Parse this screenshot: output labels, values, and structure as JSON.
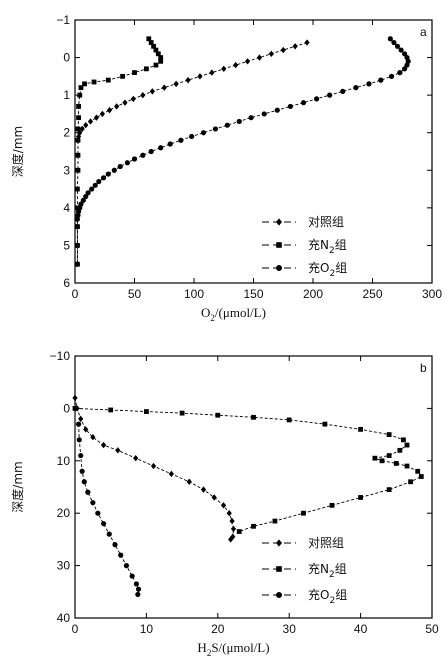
{
  "chart_data": [
    {
      "type": "line",
      "panel_label": "a",
      "xlabel_pre": "O",
      "xlabel_sub": "2",
      "xlabel_post": "/(μmol/L)",
      "ylabel": "深度/mm",
      "xlim": [
        0,
        300
      ],
      "ylim": [
        -1,
        6
      ],
      "y_inverted": true,
      "xticks": [
        0,
        50,
        100,
        150,
        200,
        250,
        300
      ],
      "yticks": [
        -1,
        0,
        1,
        2,
        3,
        4,
        5,
        6
      ],
      "legend_position": "bottom-right",
      "series": [
        {
          "name": "对照组",
          "marker": "diamond",
          "points": [
            [
              195,
              -0.4
            ],
            [
              185,
              -0.3
            ],
            [
              175,
              -0.2
            ],
            [
              165,
              -0.1
            ],
            [
              155,
              0.0
            ],
            [
              145,
              0.1
            ],
            [
              135,
              0.2
            ],
            [
              125,
              0.3
            ],
            [
              115,
              0.4
            ],
            [
              105,
              0.5
            ],
            [
              95,
              0.6
            ],
            [
              85,
              0.7
            ],
            [
              75,
              0.8
            ],
            [
              65,
              0.9
            ],
            [
              57,
              1.0
            ],
            [
              49,
              1.1
            ],
            [
              42,
              1.2
            ],
            [
              35,
              1.3
            ],
            [
              29,
              1.4
            ],
            [
              23,
              1.5
            ],
            [
              18,
              1.6
            ],
            [
              13,
              1.7
            ],
            [
              9,
              1.8
            ],
            [
              6,
              1.9
            ],
            [
              4,
              2.0
            ],
            [
              3,
              2.1
            ],
            [
              2.5,
              2.2
            ]
          ]
        },
        {
          "name": "充N",
          "name_sub": "2",
          "name_post": "组",
          "marker": "square",
          "points": [
            [
              62,
              -0.5
            ],
            [
              64,
              -0.4
            ],
            [
              66,
              -0.3
            ],
            [
              68,
              -0.2
            ],
            [
              70,
              -0.1
            ],
            [
              72,
              0.0
            ],
            [
              72,
              0.1
            ],
            [
              68,
              0.2
            ],
            [
              60,
              0.3
            ],
            [
              50,
              0.4
            ],
            [
              40,
              0.5
            ],
            [
              28,
              0.6
            ],
            [
              16,
              0.65
            ],
            [
              8,
              0.7
            ],
            [
              5,
              0.8
            ],
            [
              4,
              1.0
            ],
            [
              3,
              1.3
            ],
            [
              3,
              1.6
            ],
            [
              2.5,
              1.9
            ],
            [
              2.5,
              2.2
            ],
            [
              2.5,
              2.6
            ],
            [
              2.5,
              3.0
            ],
            [
              2,
              3.5
            ],
            [
              2,
              4.0
            ],
            [
              2,
              4.5
            ],
            [
              2,
              5.0
            ],
            [
              2,
              5.5
            ]
          ]
        },
        {
          "name": "充O",
          "name_sub": "2",
          "name_post": "组",
          "marker": "circle",
          "points": [
            [
              265,
              -0.5
            ],
            [
              268,
              -0.4
            ],
            [
              271,
              -0.3
            ],
            [
              274,
              -0.2
            ],
            [
              277,
              -0.1
            ],
            [
              279,
              0.0
            ],
            [
              280,
              0.1
            ],
            [
              279,
              0.2
            ],
            [
              277,
              0.3
            ],
            [
              273,
              0.4
            ],
            [
              266,
              0.5
            ],
            [
              257,
              0.6
            ],
            [
              247,
              0.7
            ],
            [
              236,
              0.8
            ],
            [
              225,
              0.9
            ],
            [
              214,
              1.0
            ],
            [
              203,
              1.1
            ],
            [
              192,
              1.2
            ],
            [
              181,
              1.3
            ],
            [
              170,
              1.4
            ],
            [
              159,
              1.5
            ],
            [
              148,
              1.6
            ],
            [
              138,
              1.7
            ],
            [
              128,
              1.8
            ],
            [
              118,
              1.9
            ],
            [
              108,
              2.0
            ],
            [
              98,
              2.1
            ],
            [
              89,
              2.2
            ],
            [
              80,
              2.3
            ],
            [
              72,
              2.4
            ],
            [
              64,
              2.5
            ],
            [
              57,
              2.6
            ],
            [
              50,
              2.7
            ],
            [
              44,
              2.8
            ],
            [
              38,
              2.9
            ],
            [
              33,
              3.0
            ],
            [
              28,
              3.1
            ],
            [
              24,
              3.2
            ],
            [
              20,
              3.3
            ],
            [
              17,
              3.4
            ],
            [
              14,
              3.5
            ],
            [
              11,
              3.6
            ],
            [
              9,
              3.7
            ],
            [
              7,
              3.8
            ],
            [
              5,
              3.9
            ],
            [
              4,
              4.0
            ],
            [
              3,
              4.1
            ],
            [
              2.5,
              4.2
            ],
            [
              2,
              4.3
            ],
            [
              2,
              4.5
            ],
            [
              2,
              5.0
            ],
            [
              2,
              5.5
            ]
          ]
        }
      ]
    },
    {
      "type": "line",
      "panel_label": "b",
      "xlabel_pre": "H",
      "xlabel_sub": "2",
      "xlabel_post": "S/(μmol/L)",
      "ylabel": "深度/mm",
      "xlim": [
        0,
        50
      ],
      "ylim": [
        -10,
        40
      ],
      "y_inverted": true,
      "xticks": [
        0,
        10,
        20,
        30,
        40,
        50
      ],
      "yticks": [
        -10,
        0,
        10,
        20,
        30,
        40
      ],
      "legend_position": "bottom-right",
      "series": [
        {
          "name": "对照组",
          "marker": "diamond",
          "points": [
            [
              0,
              -2
            ],
            [
              0.3,
              0
            ],
            [
              0.8,
              2
            ],
            [
              1.5,
              4
            ],
            [
              2.5,
              5.5
            ],
            [
              4,
              7
            ],
            [
              6,
              8
            ],
            [
              8.5,
              9.5
            ],
            [
              11,
              11
            ],
            [
              13.5,
              12.5
            ],
            [
              16,
              14
            ],
            [
              18,
              15.5
            ],
            [
              19.5,
              17
            ],
            [
              20.8,
              18.5
            ],
            [
              21.6,
              20
            ],
            [
              22,
              21.5
            ],
            [
              22.2,
              23
            ],
            [
              22.1,
              24.5
            ],
            [
              21.8,
              25
            ]
          ]
        },
        {
          "name": "充N",
          "name_sub": "2",
          "name_post": "组",
          "marker": "square",
          "points": [
            [
              0,
              0
            ],
            [
              5,
              0.3
            ],
            [
              10,
              0.6
            ],
            [
              15,
              0.9
            ],
            [
              20,
              1.3
            ],
            [
              25,
              1.7
            ],
            [
              30,
              2.2
            ],
            [
              35,
              3
            ],
            [
              40,
              4
            ],
            [
              44,
              5
            ],
            [
              46,
              6
            ],
            [
              46.5,
              7
            ],
            [
              45.5,
              8
            ],
            [
              44,
              9
            ],
            [
              42,
              9.5
            ],
            [
              43,
              10
            ],
            [
              45,
              10.5
            ],
            [
              46.5,
              11
            ],
            [
              48,
              12
            ],
            [
              48.5,
              13
            ],
            [
              47,
              14
            ],
            [
              44,
              15.5
            ],
            [
              40,
              17
            ],
            [
              36,
              18.5
            ],
            [
              32,
              20
            ],
            [
              28,
              21.5
            ],
            [
              25,
              22.5
            ],
            [
              23,
              23.5
            ]
          ]
        },
        {
          "name": "充O",
          "name_sub": "2",
          "name_post": "组",
          "marker": "circle",
          "points": [
            [
              0.5,
              3
            ],
            [
              0.6,
              6
            ],
            [
              0.8,
              9
            ],
            [
              1,
              12
            ],
            [
              1.3,
              14
            ],
            [
              1.8,
              16
            ],
            [
              2.5,
              18
            ],
            [
              3.2,
              20
            ],
            [
              4,
              22
            ],
            [
              4.8,
              24
            ],
            [
              5.6,
              26
            ],
            [
              6.4,
              28
            ],
            [
              7.2,
              30
            ],
            [
              8,
              32
            ],
            [
              8.6,
              33.5
            ],
            [
              8.9,
              34.5
            ],
            [
              8.8,
              35.5
            ]
          ]
        }
      ]
    }
  ]
}
